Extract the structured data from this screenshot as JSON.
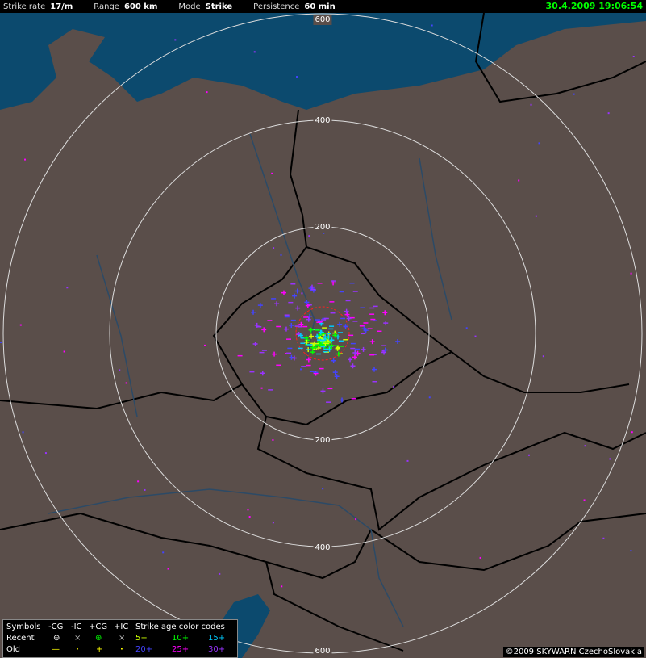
{
  "header": {
    "strike_rate_label": "Strike rate",
    "strike_rate_value": "17/m",
    "range_label": "Range",
    "range_value": "600 km",
    "mode_label": "Mode",
    "mode_value": "Strike",
    "persistence_label": "Persistence",
    "persistence_value": "60 min",
    "datetime": "30.4.2009 19:06:54"
  },
  "map": {
    "land_color": "#5a4e4a",
    "sea_color": "#0c4a6e",
    "ring_labels": [
      "200",
      "400",
      "600"
    ],
    "ring_labels_bottom": [
      "200",
      "400",
      "600"
    ]
  },
  "legend": {
    "symbols_label": "Symbols",
    "cols": [
      "-CG",
      "-IC",
      "+CG",
      "+IC"
    ],
    "age_title": "Strike age color codes",
    "recent_label": "Recent",
    "old_label": "Old",
    "recent_symbols": [
      "⊖",
      "×",
      "⊕",
      "×"
    ],
    "old_symbols": [
      "—",
      "·",
      "+",
      "·"
    ],
    "ages": [
      {
        "label": "5+",
        "color": "#ccff00"
      },
      {
        "label": "10+",
        "color": "#00ff00"
      },
      {
        "label": "15+",
        "color": "#00ccff"
      },
      {
        "label": "20+",
        "color": "#4444ff"
      },
      {
        "label": "25+",
        "color": "#ff00ff"
      },
      {
        "label": "30+",
        "color": "#9933ff"
      }
    ]
  },
  "copyright": "©2009 SKYWARN CzechoSlovakia"
}
